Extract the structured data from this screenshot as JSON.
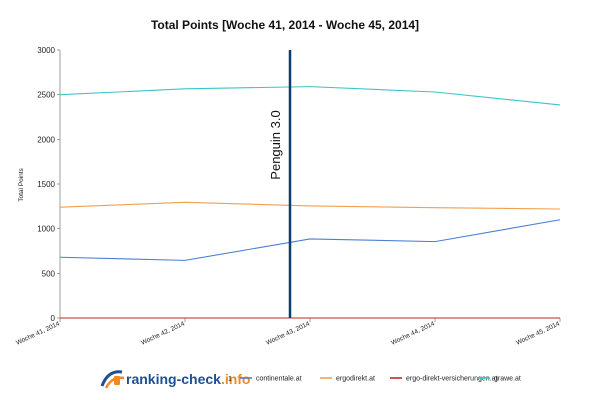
{
  "chart_data": {
    "type": "line",
    "title": "Total Points [Woche 41, 2014 - Woche 45, 2014]",
    "xlabel": "",
    "ylabel": "Total Points",
    "categories": [
      "Woche 41, 2014",
      "Woche 42, 2014",
      "Woche 43, 2014",
      "Woche 44, 2014",
      "Woche 45, 2014"
    ],
    "ylim": [
      0,
      3000
    ],
    "yticks": [
      0,
      500,
      1000,
      1500,
      2000,
      2500,
      3000
    ],
    "grid": false,
    "legend_position": "bottom",
    "series": [
      {
        "name": "continentale.at",
        "color": "#4a7fd4",
        "values": [
          680,
          645,
          885,
          855,
          1100
        ]
      },
      {
        "name": "ergodirekt.at",
        "color": "#f0a050",
        "values": [
          1240,
          1295,
          1255,
          1235,
          1220
        ]
      },
      {
        "name": "ergo-direkt-versicherungen.at",
        "color": "#b03020",
        "values": [
          0,
          0,
          0,
          0,
          0
        ]
      },
      {
        "name": "grawe.at",
        "color": "#3cc4c8",
        "values": [
          2500,
          2565,
          2590,
          2530,
          2385
        ]
      }
    ],
    "annotations": [
      {
        "label": "Penguin 3.0",
        "x": "Woche 43, 2014",
        "color": "#0f3c70"
      }
    ]
  },
  "branding": {
    "logo_text_prefix": "ranking-check",
    "logo_text_suffix": ".info",
    "legend_marker": "1"
  },
  "colors": {
    "logo_blue": "#1d4f91",
    "logo_orange": "#f08a24"
  }
}
